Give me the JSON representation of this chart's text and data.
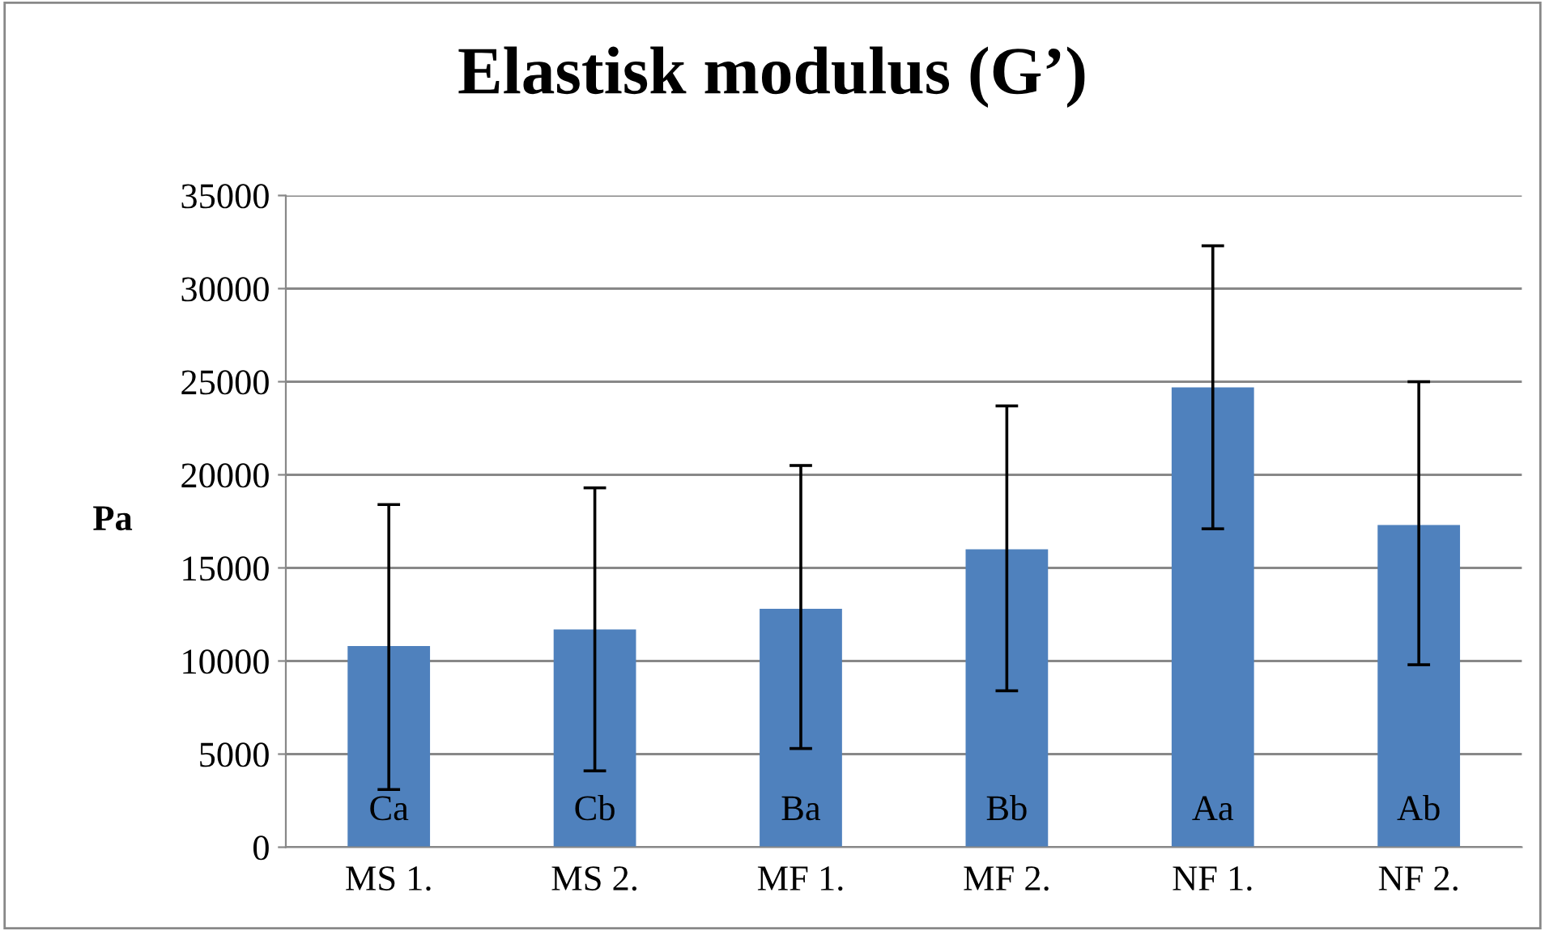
{
  "chart_data": {
    "type": "bar",
    "title": "Elastisk modulus (G’)",
    "ylabel": "Pa",
    "categories": [
      "MS 1.",
      "MS 2.",
      "MF 1.",
      "MF 2.",
      "NF 1.",
      "NF 2."
    ],
    "values": [
      10800,
      11700,
      12800,
      16000,
      24700,
      17300
    ],
    "errors": [
      [
        3100,
        18400
      ],
      [
        4100,
        19300
      ],
      [
        5300,
        20500
      ],
      [
        8400,
        23700
      ],
      [
        17100,
        32300
      ],
      [
        9800,
        25000
      ]
    ],
    "color": "#4f81bd",
    "ylim": [
      0,
      35000
    ],
    "yticks": [
      0,
      5000,
      10000,
      15000,
      20000,
      25000,
      30000,
      35000
    ],
    "grid": "y",
    "annotations": [
      "Ca",
      "Cb",
      "Ba",
      "Bb",
      "Aa",
      "Ab"
    ]
  }
}
